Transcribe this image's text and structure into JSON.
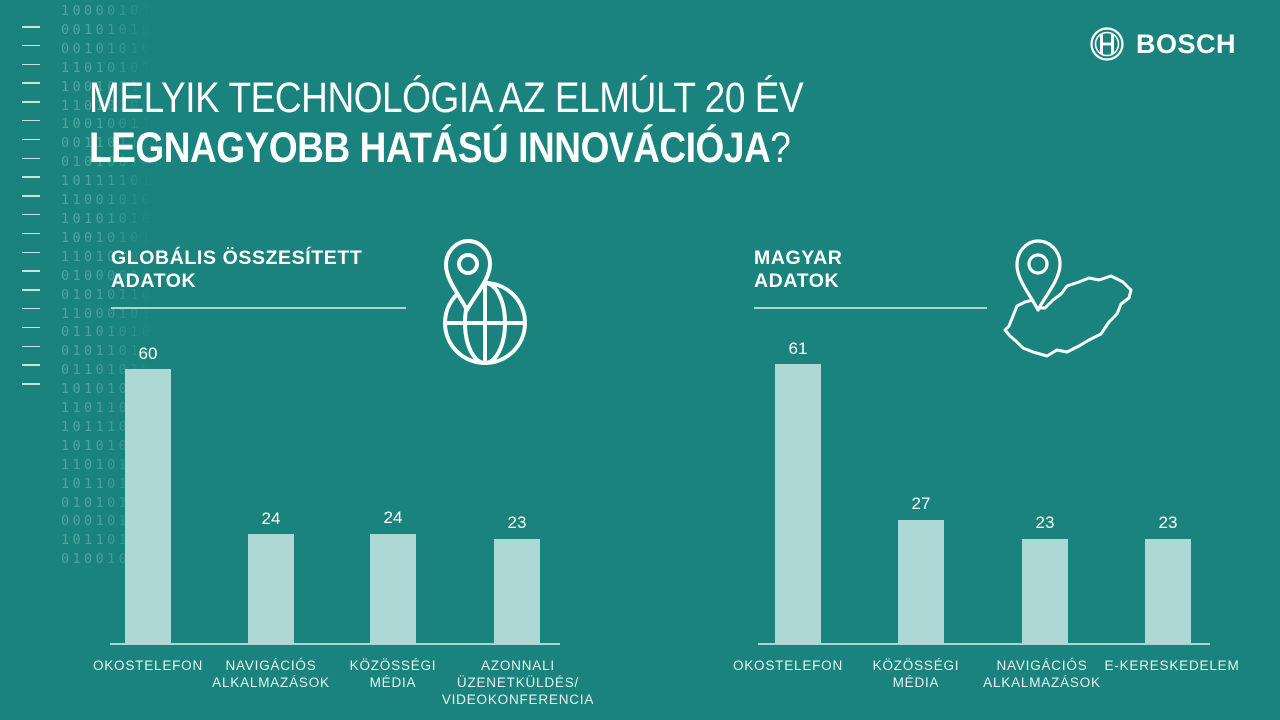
{
  "brand": {
    "name": "BOSCH",
    "logo_icon": "bosch-armature-icon"
  },
  "title": {
    "line1": "MELYIK TECHNOLÓGIA AZ ELMÚLT 20 ÉV",
    "line2_bold": "LEGNAGYOBB HATÁSÚ INNOVÁCIÓJA",
    "line2_suffix": "?"
  },
  "decor": {
    "binary_rows": [
      "10000101",
      "00101010",
      "00101010",
      "11010101",
      "10010111",
      "11010100",
      "10010011",
      "00110111",
      "01010010",
      "10111101",
      "11001010",
      "10101010",
      "10010101",
      "11010101",
      "01000010",
      "01010110",
      "11000101",
      "01101010",
      "01011010",
      "01101010",
      "10101010",
      "11011010",
      "10111010",
      "10101010",
      "11010101",
      "10110101",
      "01010110",
      "00010101",
      "10110101",
      "01001010"
    ],
    "tick_count": 20
  },
  "colors": {
    "background": "#1a837e",
    "bar": "#aed8d6",
    "rule": "#a9d6d3",
    "text": "#ffffff"
  },
  "sections": [
    {
      "heading": "GLOBÁLIS ÖSSZESÍTETT\nADATOK",
      "icon": "location-pin-globe-icon"
    },
    {
      "heading": "MAGYAR\nADATOK",
      "icon": "location-pin-hungary-map-icon"
    }
  ],
  "chart_data": [
    {
      "type": "bar",
      "title": "GLOBÁLIS ÖSSZESÍTETT ADATOK",
      "categories": [
        "OKOSTELEFON",
        "NAVIGÁCIÓS ALKALMAZÁSOK",
        "KÖZÖSSÉGI MÉDIA",
        "AZONNALI ÜZENETKÜLDÉS/ VIDEOKONFERENCIA"
      ],
      "category_labels": [
        "OKOSTELEFON",
        "NAVIGÁCIÓS\nALKALMAZÁSOK",
        "KÖZÖSSÉGI\nMÉDIA",
        "AZONNALI\nÜZENETKÜLDÉS/\nVIDEOKONFERENCIA"
      ],
      "values": [
        60,
        24,
        24,
        23
      ],
      "value_labels": [
        "60",
        "24",
        "24",
        "23"
      ],
      "xlabel": "",
      "ylabel": "",
      "ylim": [
        0,
        60
      ],
      "grid": false,
      "legend": "none"
    },
    {
      "type": "bar",
      "title": "MAGYAR ADATOK",
      "categories": [
        "OKOSTELEFON",
        "KÖZÖSSÉGI MÉDIA",
        "NAVIGÁCIÓS ALKALMAZÁSOK",
        "E-KERESKEDELEM"
      ],
      "category_labels": [
        "OKOSTELEFON",
        "KÖZÖSSÉGI\nMÉDIA",
        "NAVIGÁCIÓS\nALKALMAZÁSOK",
        "E-KERESKEDELEM"
      ],
      "values": [
        61,
        27,
        23,
        23
      ],
      "value_labels": [
        "61",
        "27",
        "23",
        "23"
      ],
      "xlabel": "",
      "ylabel": "",
      "ylim": [
        0,
        61
      ],
      "grid": false,
      "legend": "none"
    }
  ]
}
